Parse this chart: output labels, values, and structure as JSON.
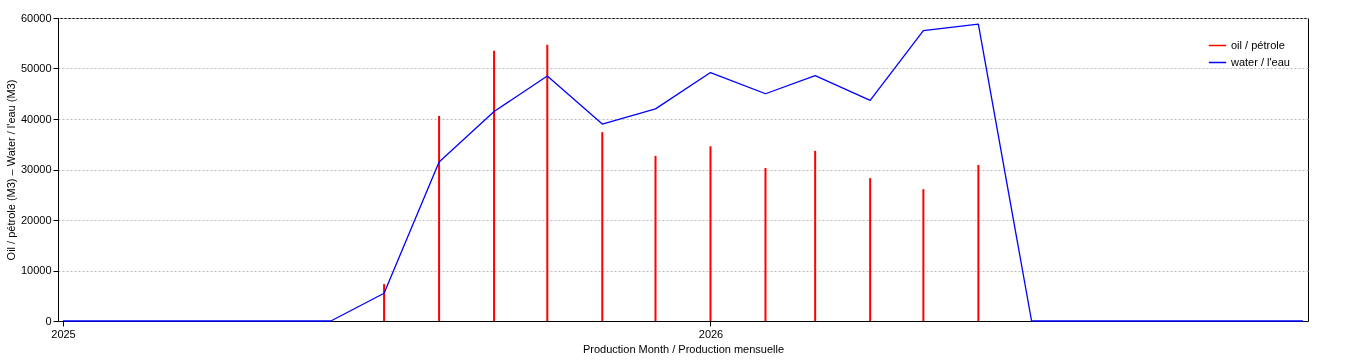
{
  "chart_data": {
    "type": "line",
    "xlabel": "Production Month / Production mensuelle",
    "ylabel": "Oil / pétrole (M3) – Water / l'eau (M3)",
    "xlim": [
      "2025-01",
      "2026-12"
    ],
    "xticks": [
      "2025",
      "2026"
    ],
    "ylim": [
      0,
      60000
    ],
    "yticks": [
      0,
      10000,
      20000,
      30000,
      40000,
      50000,
      60000
    ],
    "grid": "y",
    "legend": "top right",
    "series": [
      {
        "name": "oil / pétrole",
        "type": "bar",
        "color": "#ff0000",
        "x": [
          "2025-07",
          "2025-08",
          "2025-09",
          "2025-10",
          "2025-11",
          "2025-12",
          "2026-01",
          "2026-02",
          "2026-03",
          "2026-04",
          "2026-05",
          "2026-06"
        ],
        "values": [
          7300,
          40600,
          53500,
          54700,
          37400,
          32700,
          34600,
          30300,
          33700,
          28300,
          26100,
          30900
        ]
      },
      {
        "name": "water / l'eau",
        "color": "#0000ff",
        "x": [
          "2025-01",
          "2025-02",
          "2025-03",
          "2025-04",
          "2025-05",
          "2025-06",
          "2025-07",
          "2025-08",
          "2025-09",
          "2025-10",
          "2025-11",
          "2025-12",
          "2026-01",
          "2026-02",
          "2026-03",
          "2026-04",
          "2026-05",
          "2026-06",
          "2026-07",
          "2026-08",
          "2026-09",
          "2026-10",
          "2026-11",
          "2026-12"
        ],
        "values": [
          0,
          0,
          0,
          0,
          0,
          0,
          5500,
          31500,
          41500,
          48500,
          39000,
          42000,
          49200,
          45000,
          48600,
          43700,
          57500,
          58800,
          0,
          0,
          0,
          0,
          0,
          0
        ]
      }
    ]
  }
}
